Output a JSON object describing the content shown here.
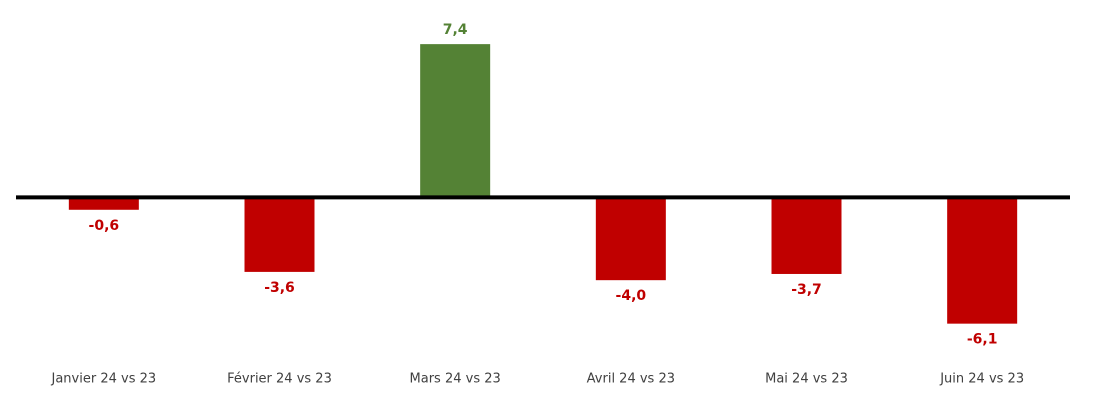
{
  "chart_data": {
    "type": "bar",
    "categories": [
      "Janvier 24 vs 23",
      "Février 24 vs 23",
      "Mars 24 vs 23",
      "Avril 24 vs 23",
      "Mai 24 vs 23",
      "Juin 24 vs 23"
    ],
    "values": [
      -0.6,
      -3.6,
      7.4,
      -4.0,
      -3.7,
      -6.1
    ],
    "value_labels": [
      "-0,6",
      "-3,6",
      "7,4",
      "-4,0",
      "-3,7",
      "-6,1"
    ],
    "color_positive": "#548235",
    "color_negative": "#c00000",
    "ylim": [
      -8,
      9
    ]
  }
}
